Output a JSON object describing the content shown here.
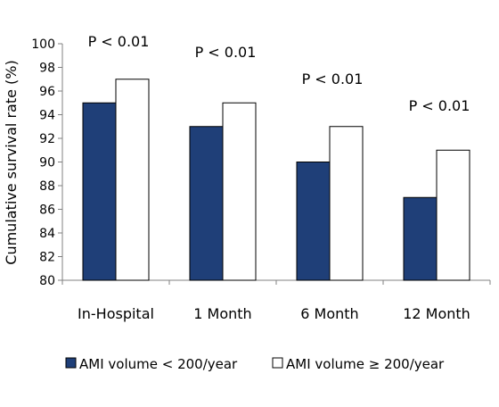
{
  "chart_data": {
    "type": "bar",
    "ylabel": "Cumulative survival rate (%)",
    "xlabel": "",
    "ylim": [
      80,
      100
    ],
    "yticks": [
      80,
      82,
      84,
      86,
      88,
      90,
      92,
      94,
      96,
      98,
      100
    ],
    "grid": false,
    "legend_position": "bottom",
    "categories": [
      "In-Hospital",
      "1 Month",
      "6 Month",
      "12 Month"
    ],
    "series": [
      {
        "name": "AMI volume < 200/year",
        "values": [
          95,
          93,
          90,
          87
        ],
        "color": "#1f3f78"
      },
      {
        "name": "AMI volume ≥ 200/year",
        "values": [
          97,
          95,
          93,
          91
        ],
        "color": "#ffffff"
      }
    ],
    "annotations": [
      "P < 0.01",
      "P < 0.01",
      "P < 0.01",
      "P < 0.01"
    ]
  }
}
